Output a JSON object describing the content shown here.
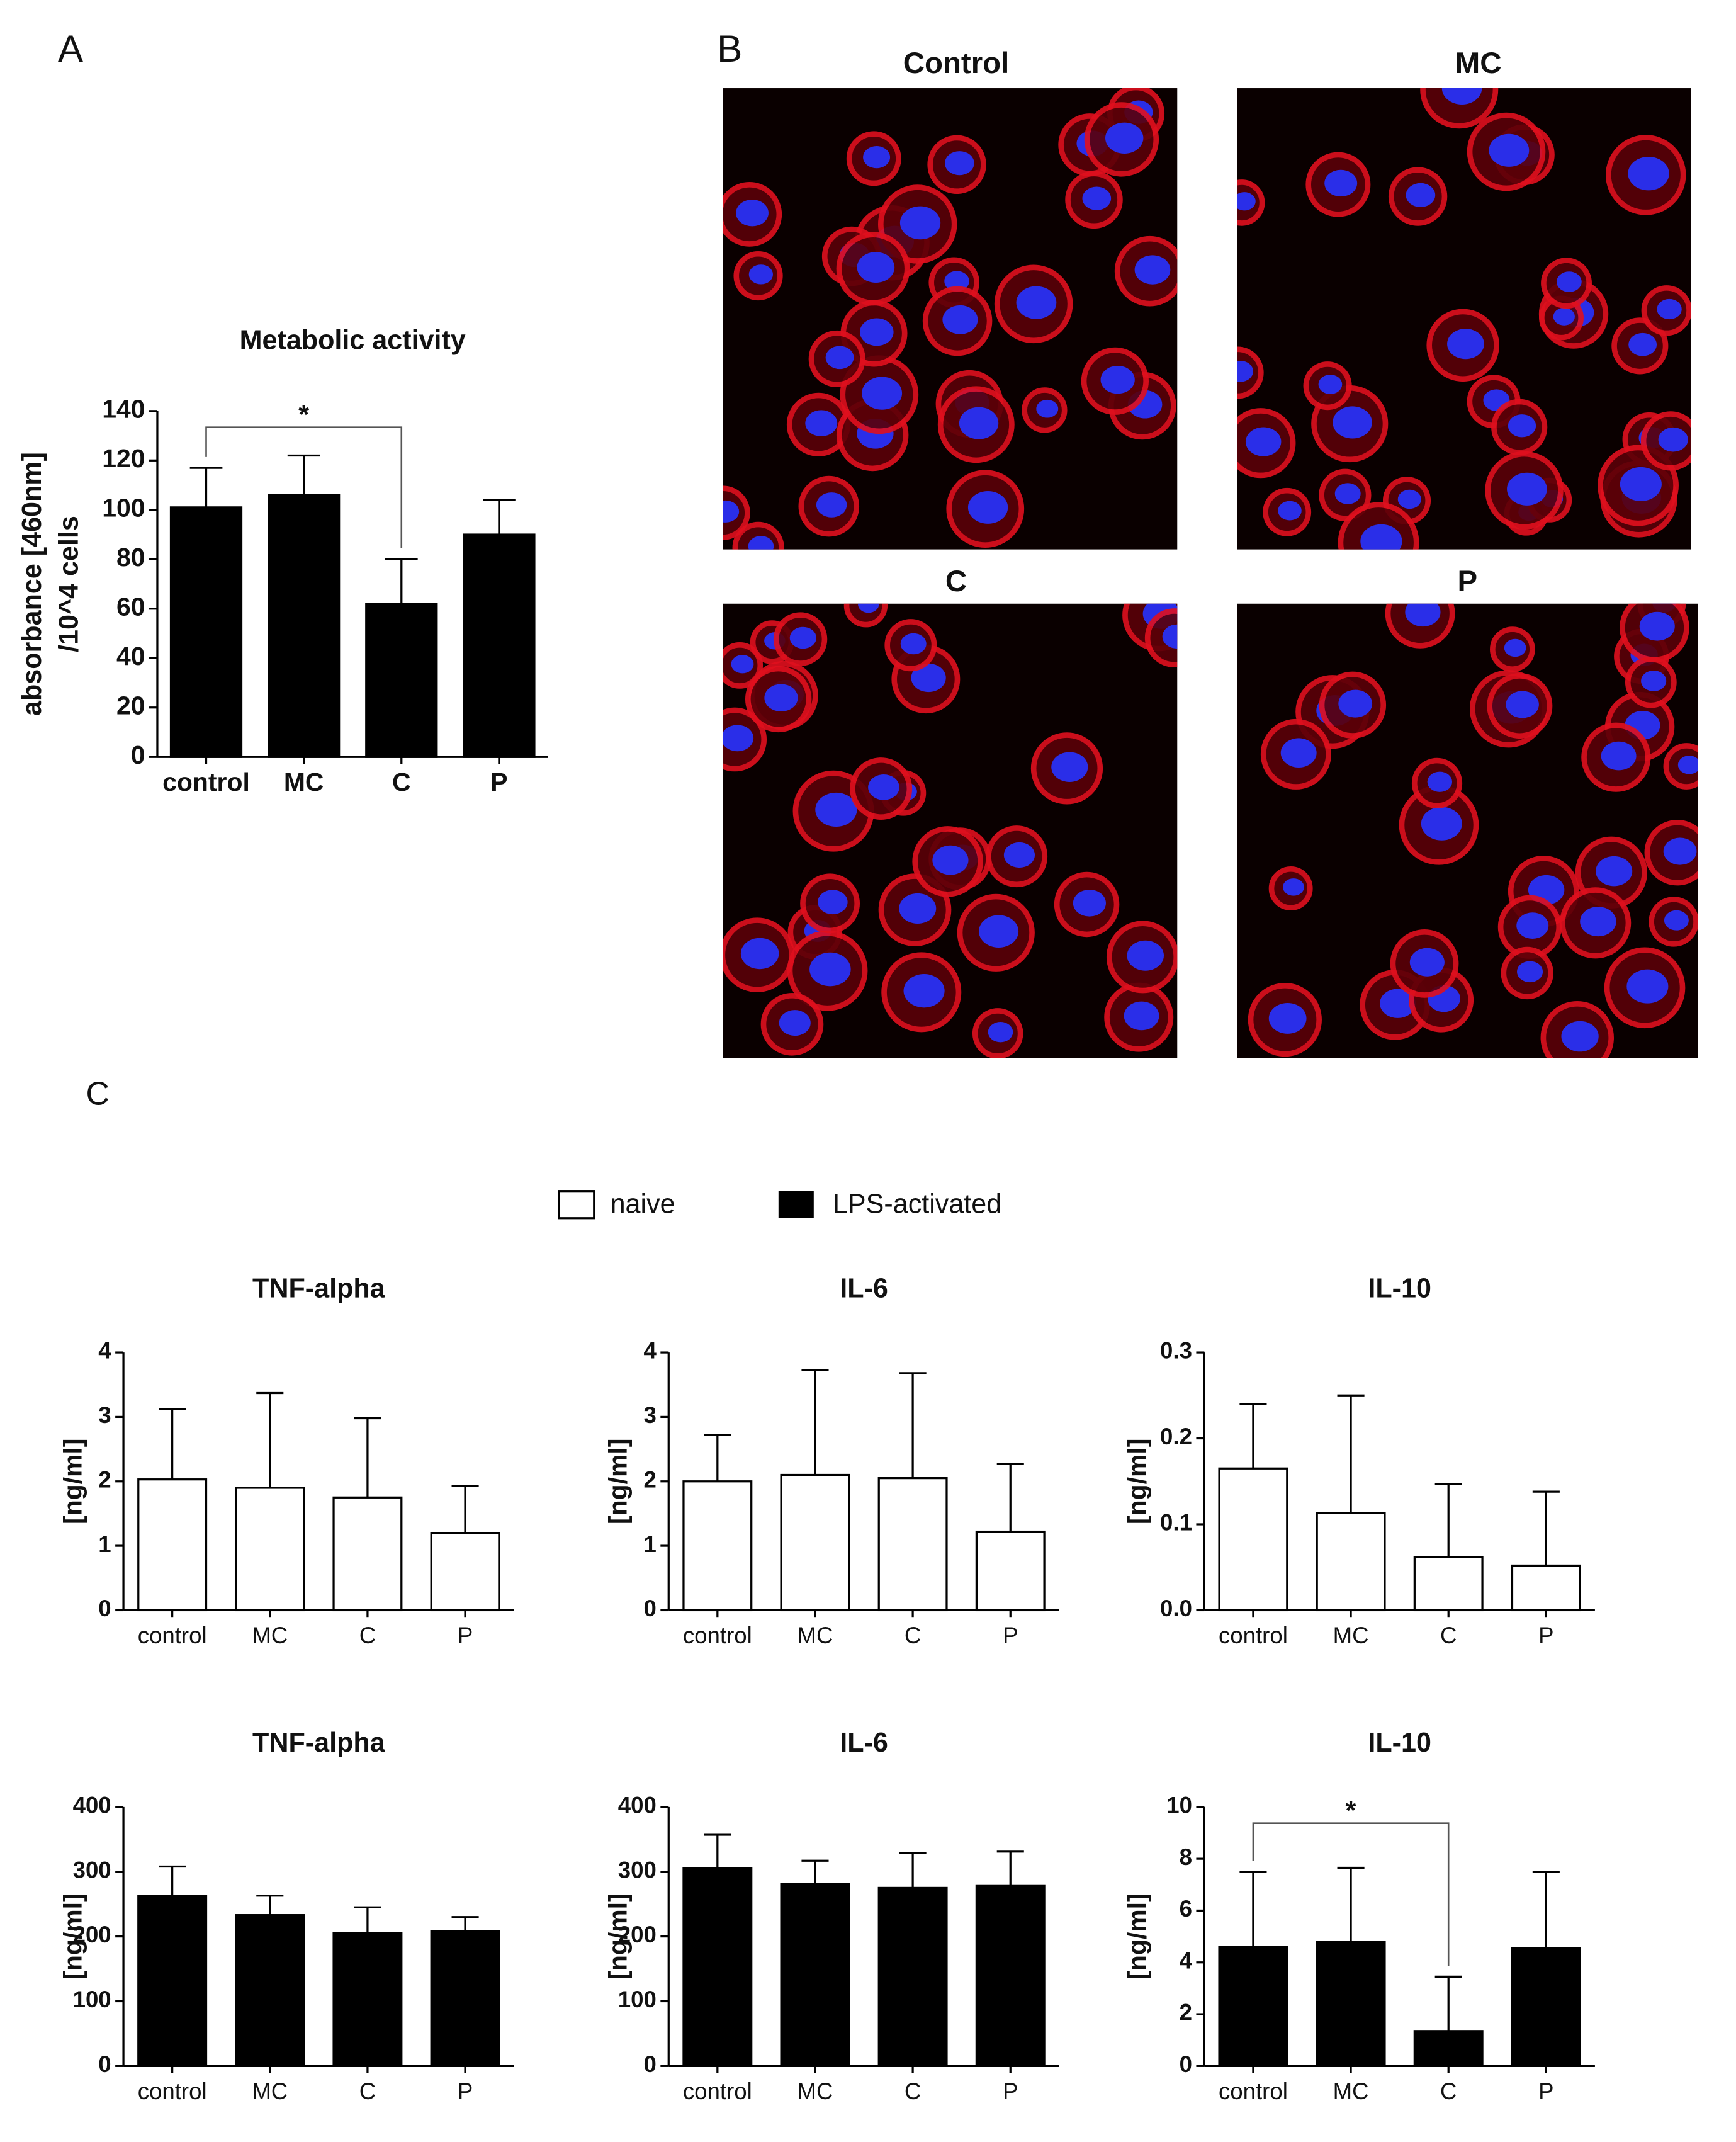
{
  "figure": {
    "panel_labels": [
      "A",
      "B",
      "C"
    ],
    "images": [
      "Control",
      "MC",
      "C",
      "P"
    ]
  },
  "chart_data": [
    {
      "type": "bar",
      "title": "Metabolic activity",
      "ylabel": [
        "absorbance [460nm]",
        "/10^4 cells"
      ],
      "categories": [
        "control",
        "MC",
        "C",
        "P"
      ],
      "series": [
        {
          "color": "#000000",
          "values": [
            101,
            106,
            62,
            90
          ],
          "errors": [
            16,
            16,
            18,
            14
          ]
        }
      ],
      "ylim": [
        0,
        140
      ],
      "yticks": [
        0,
        20,
        40,
        60,
        80,
        100,
        120,
        140
      ],
      "annotation": "*"
    },
    {
      "type": "bar",
      "title": "TNF-alpha",
      "ylabel": "[ng/ml]",
      "categories": [
        "control",
        "MC",
        "C",
        "P"
      ],
      "series": [
        {
          "name": "naive",
          "color": "#ffffff",
          "values": [
            2.03,
            1.9,
            1.75,
            1.2
          ],
          "errors": [
            1.09,
            1.47,
            1.23,
            0.73
          ]
        }
      ],
      "ylim": [
        0,
        4
      ],
      "yticks": [
        0,
        1,
        2,
        3,
        4
      ]
    },
    {
      "type": "bar",
      "title": "IL-6",
      "ylabel": "[ng/ml]",
      "categories": [
        "control",
        "MC",
        "C",
        "P"
      ],
      "series": [
        {
          "color": "#ffffff",
          "values": [
            2.0,
            2.1,
            2.05,
            1.22
          ],
          "errors": [
            0.72,
            1.63,
            1.63,
            1.05
          ]
        }
      ],
      "ylim": [
        0,
        4
      ],
      "yticks": [
        0,
        1,
        2,
        3,
        4
      ]
    },
    {
      "type": "bar",
      "title": "IL-10",
      "ylabel": "[ng/ml]",
      "categories": [
        "control",
        "MC",
        "C",
        "P"
      ],
      "series": [
        {
          "color": "#ffffff",
          "values": [
            0.165,
            0.113,
            0.062,
            0.052
          ],
          "errors": [
            0.075,
            0.137,
            0.085,
            0.086
          ]
        }
      ],
      "ylim": [
        0,
        0.3
      ],
      "yticks": [
        {
          "value": 0,
          "label": "0.0"
        },
        0.1,
        0.2,
        0.3
      ]
    },
    {
      "type": "bar",
      "title": "TNF-alpha",
      "ylabel": "[ng/ml]",
      "categories": [
        "control",
        "MC",
        "C",
        "P"
      ],
      "series": [
        {
          "name": "LPS-activated",
          "color": "#000000",
          "values": [
            263,
            233,
            205,
            208
          ],
          "errors": [
            45,
            30,
            40,
            22
          ]
        }
      ],
      "ylim": [
        0,
        400
      ],
      "yticks": [
        0,
        100,
        200,
        300,
        400
      ]
    },
    {
      "type": "bar",
      "title": "IL-6",
      "ylabel": "[ng/ml]",
      "categories": [
        "control",
        "MC",
        "C",
        "P"
      ],
      "series": [
        {
          "color": "#000000",
          "values": [
            305,
            281,
            275,
            278
          ],
          "errors": [
            52,
            36,
            54,
            53
          ]
        }
      ],
      "ylim": [
        0,
        400
      ],
      "yticks": [
        0,
        100,
        200,
        300,
        400
      ]
    },
    {
      "type": "bar",
      "title": "IL-10",
      "ylabel": "[ng/ml]",
      "categories": [
        "control",
        "MC",
        "C",
        "P"
      ],
      "series": [
        {
          "color": "#000000",
          "values": [
            4.6,
            4.8,
            1.35,
            4.55
          ],
          "errors": [
            2.9,
            2.85,
            2.1,
            2.95
          ]
        }
      ],
      "ylim": [
        0,
        10
      ],
      "yticks": [
        0,
        2,
        4,
        6,
        8,
        10
      ],
      "annotation": "*"
    }
  ]
}
